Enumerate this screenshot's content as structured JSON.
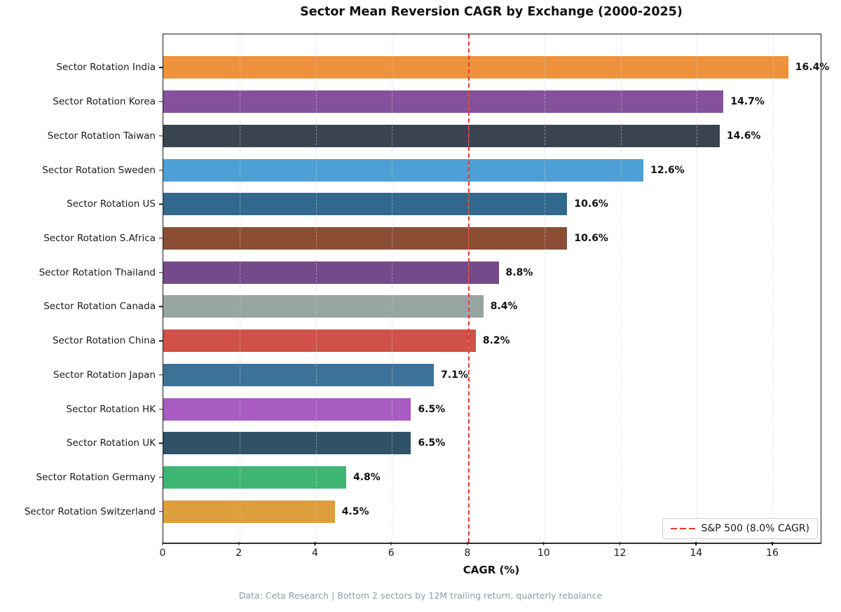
{
  "title": "Sector Mean Reversion CAGR by Exchange (2000-2025)",
  "footer": "Data: Ceta Research | Bottom 2 sectors by 12M trailing return, quarterly rebalance",
  "legend": {
    "label": "S&P 500 (8.0% CAGR)"
  },
  "chart_data": {
    "type": "bar",
    "orientation": "horizontal",
    "title": "Sector Mean Reversion CAGR by Exchange (2000-2025)",
    "xlabel": "CAGR (%)",
    "ylabel": "",
    "xlim": [
      0,
      17.25
    ],
    "x_ticks": [
      0,
      2,
      4,
      6,
      8,
      10,
      12,
      14,
      16
    ],
    "grid": "vertical dashed",
    "legend_position": "lower right",
    "categories": [
      "Sector Rotation India",
      "Sector Rotation Korea",
      "Sector Rotation Taiwan",
      "Sector Rotation Sweden",
      "Sector Rotation US",
      "Sector Rotation S.Africa",
      "Sector Rotation Thailand",
      "Sector Rotation Canada",
      "Sector Rotation China",
      "Sector Rotation Japan",
      "Sector Rotation HK",
      "Sector Rotation UK",
      "Sector Rotation Germany",
      "Sector Rotation Switzerland"
    ],
    "values": [
      16.4,
      14.7,
      14.6,
      12.6,
      10.6,
      10.6,
      8.8,
      8.4,
      8.2,
      7.1,
      6.5,
      6.5,
      4.8,
      4.5
    ],
    "value_labels": [
      "16.4%",
      "14.7%",
      "14.6%",
      "12.6%",
      "10.6%",
      "10.6%",
      "8.8%",
      "8.4%",
      "8.2%",
      "7.1%",
      "6.5%",
      "6.5%",
      "4.8%",
      "4.5%"
    ],
    "bar_colors": [
      "#ee923d",
      "#85519c",
      "#394450",
      "#4d9fd6",
      "#32688e",
      "#8b4e35",
      "#744a8a",
      "#97a5a3",
      "#cf5148",
      "#3d7298",
      "#a85cc2",
      "#2f5269",
      "#3fb573",
      "#dd9f3b"
    ],
    "reference_line": {
      "x": 8,
      "color": "#e8392f",
      "style": "dashed",
      "label": "S&P 500 (8.0% CAGR)"
    }
  }
}
